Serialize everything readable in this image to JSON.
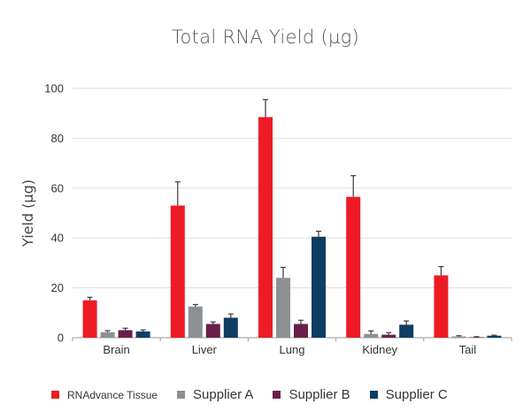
{
  "chart_data": {
    "type": "bar",
    "title": "Total RNA Yield (µg)",
    "ylabel": "Yield (µg)",
    "xlabel": "",
    "ylim": [
      0,
      100
    ],
    "yticks": [
      0,
      20,
      40,
      60,
      80,
      100
    ],
    "grid": true,
    "legend_position": "bottom",
    "categories": [
      "Brain",
      "Liver",
      "Lung",
      "Kidney",
      "Tail"
    ],
    "series": [
      {
        "name": "RNAdvance Tissue",
        "color": "#ed1c24",
        "values": [
          15,
          53,
          88.5,
          56.5,
          25
        ],
        "errors": [
          1.2,
          9.5,
          7,
          8.5,
          3.5
        ]
      },
      {
        "name": "Supplier A",
        "color": "#8d9093",
        "values": [
          2.2,
          12.5,
          24,
          1.5,
          0.5
        ],
        "errors": [
          0.6,
          0.8,
          4.2,
          1.2,
          0.3
        ]
      },
      {
        "name": "Supplier B",
        "color": "#6a1f4a",
        "values": [
          3,
          5.5,
          5.5,
          1.2,
          0.2
        ],
        "errors": [
          0.8,
          0.8,
          1.5,
          0.8,
          0.2
        ]
      },
      {
        "name": "Supplier C",
        "color": "#0f3e63",
        "values": [
          2.5,
          8,
          40.5,
          5.2,
          0.8
        ],
        "errors": [
          0.6,
          1.5,
          2.2,
          1.5,
          0.2
        ]
      }
    ]
  }
}
